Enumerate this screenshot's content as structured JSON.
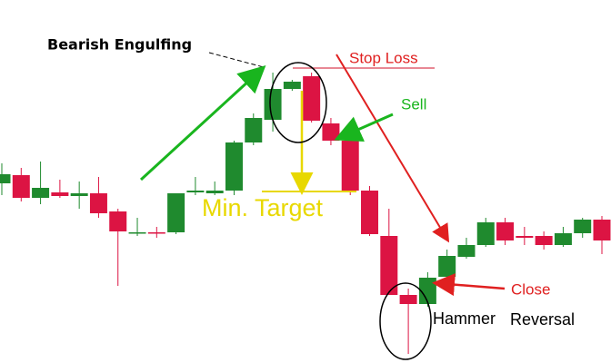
{
  "chart_data": {
    "type": "candlestick",
    "categories": [
      null,
      null,
      null,
      null,
      null,
      null,
      null,
      null,
      null,
      null,
      null,
      null,
      null,
      null,
      null,
      null,
      null,
      null,
      null,
      null,
      null,
      null,
      null,
      null,
      null,
      null,
      null,
      null,
      null,
      null,
      null,
      null
    ],
    "candles": [
      {
        "open": 198,
        "high": 220,
        "low": 185,
        "close": 208
      },
      {
        "open": 207,
        "high": 215,
        "low": 178,
        "close": 182
      },
      {
        "open": 182,
        "high": 222,
        "low": 175,
        "close": 193
      },
      {
        "open": 188,
        "high": 202,
        "low": 182,
        "close": 184
      },
      {
        "open": 184,
        "high": 200,
        "low": 170,
        "close": 187
      },
      {
        "open": 187,
        "high": 205,
        "low": 160,
        "close": 165
      },
      {
        "open": 167,
        "high": 170,
        "low": 85,
        "close": 145
      },
      {
        "open": 143,
        "high": 160,
        "low": 140,
        "close": 144
      },
      {
        "open": 144,
        "high": 150,
        "low": 138,
        "close": 143
      },
      {
        "open": 144,
        "high": 187,
        "low": 142,
        "close": 187
      },
      {
        "open": 188,
        "high": 205,
        "low": 185,
        "close": 190
      },
      {
        "open": 187,
        "high": 200,
        "low": 185,
        "close": 190
      },
      {
        "open": 190,
        "high": 245,
        "low": 185,
        "close": 243
      },
      {
        "open": 243,
        "high": 275,
        "low": 240,
        "close": 270
      },
      {
        "open": 268,
        "high": 320,
        "low": 255,
        "close": 302
      },
      {
        "open": 302,
        "high": 312,
        "low": 300,
        "close": 310
      },
      {
        "open": 316,
        "high": 320,
        "low": 265,
        "close": 267
      },
      {
        "open": 264,
        "high": 270,
        "low": 240,
        "close": 245
      },
      {
        "open": 245,
        "high": 250,
        "low": 185,
        "close": 190
      },
      {
        "open": 190,
        "high": 195,
        "low": 140,
        "close": 142
      },
      {
        "open": 140,
        "high": 170,
        "low": 75,
        "close": 75
      },
      {
        "open": 75,
        "high": 82,
        "low": 10,
        "close": 65
      },
      {
        "open": 65,
        "high": 100,
        "low": 62,
        "close": 94
      },
      {
        "open": 95,
        "high": 125,
        "low": 94,
        "close": 118
      },
      {
        "open": 117,
        "high": 138,
        "low": 115,
        "close": 130
      },
      {
        "open": 130,
        "high": 160,
        "low": 128,
        "close": 155
      },
      {
        "open": 155,
        "high": 160,
        "low": 130,
        "close": 135
      },
      {
        "open": 140,
        "high": 150,
        "low": 130,
        "close": 138
      },
      {
        "open": 140,
        "high": 145,
        "low": 125,
        "close": 130
      },
      {
        "open": 130,
        "high": 150,
        "low": 128,
        "close": 143
      },
      {
        "open": 143,
        "high": 160,
        "low": 138,
        "close": 158
      },
      {
        "open": 158,
        "high": 162,
        "low": 120,
        "close": 135
      }
    ],
    "up_color": "#1f8a2e",
    "down_color": "#dc1443",
    "ylim": [
      0,
      400
    ],
    "annotations": [
      "Bearish Engulfing",
      "Stop Loss",
      "Sell",
      "Min. Target",
      "Close",
      "Hammer",
      "Reversal"
    ]
  }
}
